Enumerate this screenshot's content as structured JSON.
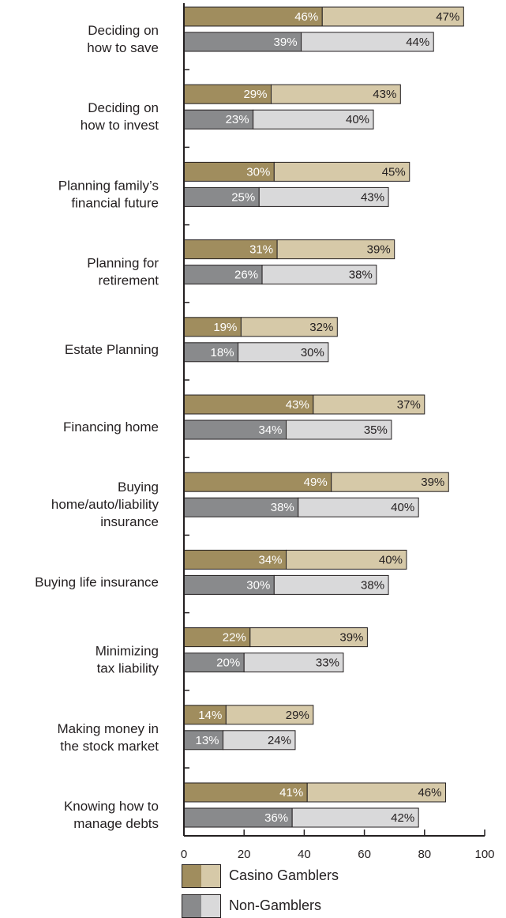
{
  "chart_data": {
    "type": "bar",
    "orientation": "horizontal",
    "stacked": true,
    "categories": [
      [
        "Deciding on",
        "how to save"
      ],
      [
        "Deciding on",
        "how to invest"
      ],
      [
        "Planning family’s",
        "financial future"
      ],
      [
        "Planning for",
        "retirement"
      ],
      [
        "Estate Planning"
      ],
      [
        "Financing home"
      ],
      [
        "Buying",
        "home/auto/liability",
        "insurance"
      ],
      [
        "Buying life insurance"
      ],
      [
        "Minimizing",
        "tax liability"
      ],
      [
        "Making money in",
        "the stock market"
      ],
      [
        "Knowing how to",
        "manage debts"
      ]
    ],
    "groups": [
      {
        "name": "Casino Gamblers",
        "colors": [
          "#a08d5e",
          "#d6c9a8"
        ],
        "seg1": [
          46,
          29,
          30,
          31,
          19,
          43,
          49,
          34,
          22,
          14,
          41
        ],
        "seg2": [
          47,
          43,
          45,
          39,
          32,
          37,
          39,
          40,
          39,
          29,
          46
        ]
      },
      {
        "name": "Non-Gamblers",
        "colors": [
          "#898a8c",
          "#d9d9da"
        ],
        "seg1": [
          39,
          23,
          25,
          26,
          18,
          34,
          38,
          30,
          20,
          13,
          36
        ],
        "seg2": [
          44,
          40,
          43,
          38,
          30,
          35,
          40,
          38,
          33,
          24,
          42
        ]
      }
    ],
    "xlim": [
      0,
      100
    ],
    "xticks": [
      0,
      20,
      40,
      60,
      80,
      100
    ],
    "grid": false,
    "legend_position": "bottom"
  },
  "legend": [
    {
      "label": "Casino Gamblers",
      "colors": [
        "#a08d5e",
        "#d6c9a8"
      ]
    },
    {
      "label": "Non-Gamblers",
      "colors": [
        "#898a8c",
        "#d9d9da"
      ]
    }
  ]
}
